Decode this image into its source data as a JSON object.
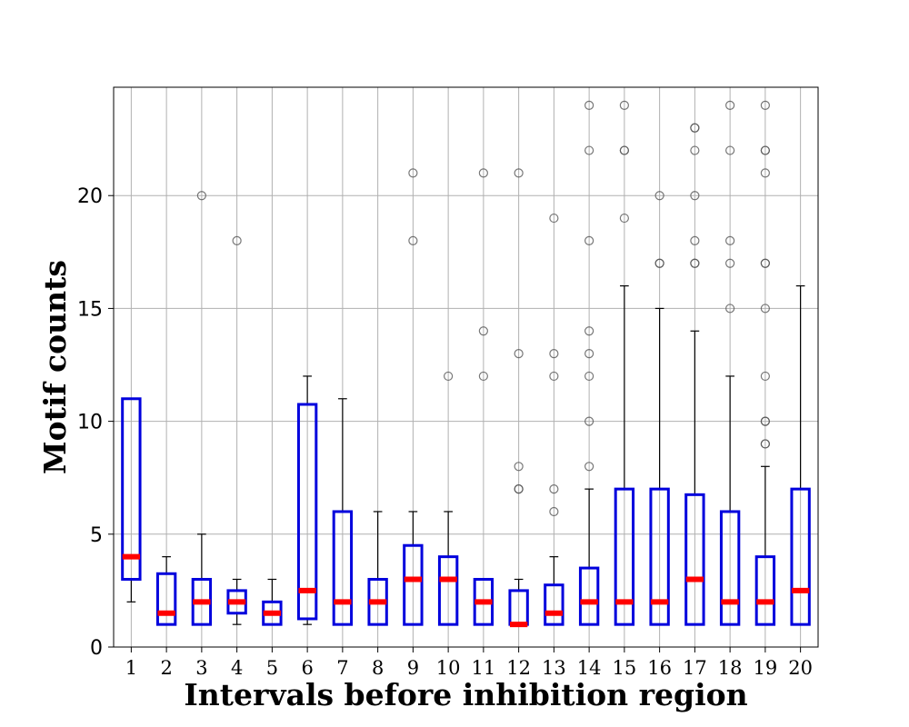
{
  "chart_data": {
    "type": "box",
    "xlabel": "Intervals before inhibition region",
    "ylabel": "Motif counts",
    "categories": [
      "1",
      "2",
      "3",
      "4",
      "5",
      "6",
      "7",
      "8",
      "9",
      "10",
      "11",
      "12",
      "13",
      "14",
      "15",
      "16",
      "17",
      "18",
      "19",
      "20"
    ],
    "ylim": [
      0,
      24.8
    ],
    "yticks": [
      0,
      5,
      10,
      15,
      20
    ],
    "grid": true,
    "colors": {
      "box": "#0000dd",
      "median": "#ff0000",
      "whisker": "#000000",
      "flier": "#555555",
      "grid": "#b0b0b0"
    },
    "boxes": [
      {
        "q1": 3,
        "median": 4,
        "q3": 11,
        "whislo": 2,
        "whishi": 11,
        "fliers": []
      },
      {
        "q1": 1,
        "median": 1.5,
        "q3": 3.25,
        "whislo": 1,
        "whishi": 4,
        "fliers": []
      },
      {
        "q1": 1,
        "median": 2,
        "q3": 3,
        "whislo": 1,
        "whishi": 5,
        "fliers": [
          20
        ]
      },
      {
        "q1": 1.5,
        "median": 2,
        "q3": 2.5,
        "whislo": 1,
        "whishi": 3,
        "fliers": [
          18
        ]
      },
      {
        "q1": 1,
        "median": 1.5,
        "q3": 2,
        "whislo": 1,
        "whishi": 3,
        "fliers": []
      },
      {
        "q1": 1.25,
        "median": 2.5,
        "q3": 10.75,
        "whislo": 1,
        "whishi": 12,
        "fliers": []
      },
      {
        "q1": 1,
        "median": 2,
        "q3": 6,
        "whislo": 1,
        "whishi": 11,
        "fliers": []
      },
      {
        "q1": 1,
        "median": 2,
        "q3": 3,
        "whislo": 1,
        "whishi": 6,
        "fliers": []
      },
      {
        "q1": 1,
        "median": 3,
        "q3": 4.5,
        "whislo": 1,
        "whishi": 6,
        "fliers": [
          18,
          21
        ]
      },
      {
        "q1": 1,
        "median": 3,
        "q3": 4,
        "whislo": 1,
        "whishi": 6,
        "fliers": [
          12
        ]
      },
      {
        "q1": 1,
        "median": 2,
        "q3": 3,
        "whislo": 1,
        "whishi": 3,
        "fliers": [
          12,
          14,
          21
        ]
      },
      {
        "q1": 1,
        "median": 1,
        "q3": 2.5,
        "whislo": 1,
        "whishi": 3,
        "fliers": [
          7,
          7,
          8,
          13,
          21
        ]
      },
      {
        "q1": 1,
        "median": 1.5,
        "q3": 2.75,
        "whislo": 1,
        "whishi": 4,
        "fliers": [
          6,
          7,
          12,
          13,
          19
        ]
      },
      {
        "q1": 1,
        "median": 2,
        "q3": 3.5,
        "whislo": 1,
        "whishi": 7,
        "fliers": [
          8,
          10,
          12,
          13,
          14,
          18,
          22,
          24
        ]
      },
      {
        "q1": 1,
        "median": 2,
        "q3": 7,
        "whislo": 1,
        "whishi": 16,
        "fliers": [
          19,
          22,
          22,
          24
        ]
      },
      {
        "q1": 1,
        "median": 2,
        "q3": 7,
        "whislo": 1,
        "whishi": 15,
        "fliers": [
          17,
          17,
          20
        ]
      },
      {
        "q1": 1,
        "median": 3,
        "q3": 6.75,
        "whislo": 1,
        "whishi": 14,
        "fliers": [
          17,
          17,
          18,
          20,
          22,
          23,
          23
        ]
      },
      {
        "q1": 1,
        "median": 2,
        "q3": 6,
        "whislo": 1,
        "whishi": 12,
        "fliers": [
          15,
          17,
          18,
          22,
          24
        ]
      },
      {
        "q1": 1,
        "median": 2,
        "q3": 4,
        "whislo": 1,
        "whishi": 8,
        "fliers": [
          9,
          9,
          10,
          10,
          12,
          15,
          17,
          17,
          21,
          22,
          22,
          24
        ]
      },
      {
        "q1": 1,
        "median": 2.5,
        "q3": 7,
        "whislo": 1,
        "whishi": 16,
        "fliers": []
      }
    ]
  }
}
